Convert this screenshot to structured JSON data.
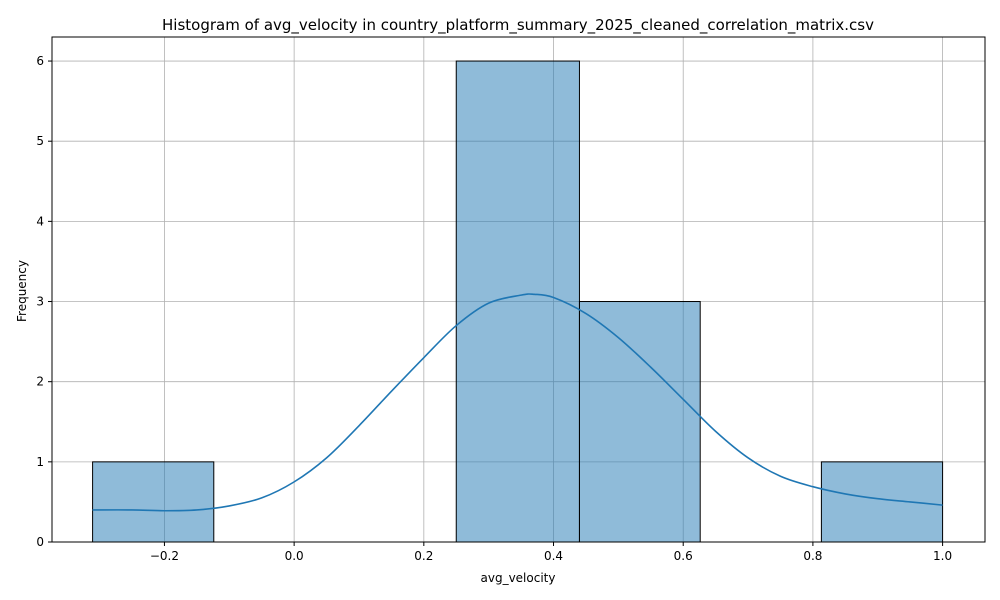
{
  "chart_data": {
    "type": "bar",
    "title": "Histogram of avg_velocity in country_platform_summary_2025_cleaned_correlation_matrix.csv",
    "xlabel": "avg_velocity",
    "ylabel": "Frequency",
    "xlim": [
      -0.3734,
      1.0654
    ],
    "ylim": [
      0,
      6.3
    ],
    "grid": true,
    "xticks": [
      -0.2,
      0.0,
      0.2,
      0.4,
      0.6,
      0.8,
      1.0
    ],
    "xtick_labels": [
      "−0.2",
      "0.0",
      "0.2",
      "0.4",
      "0.6",
      "0.8",
      "1.0"
    ],
    "yticks": [
      0,
      1,
      2,
      3,
      4,
      5,
      6
    ],
    "ytick_labels": [
      "0",
      "1",
      "2",
      "3",
      "4",
      "5",
      "6"
    ],
    "bins": [
      {
        "x0": -0.3108,
        "x1": -0.1239,
        "count": 1
      },
      {
        "x0": -0.1239,
        "x1": 0.0631,
        "count": 0
      },
      {
        "x0": 0.0631,
        "x1": 0.25,
        "count": 0
      },
      {
        "x0": 0.25,
        "x1": 0.44,
        "count": 6
      },
      {
        "x0": 0.44,
        "x1": 0.6262,
        "count": 3
      },
      {
        "x0": 0.6262,
        "x1": 0.8131,
        "count": 0
      },
      {
        "x0": 0.8131,
        "x1": 1.0,
        "count": 1
      }
    ],
    "kde": {
      "x": [
        -0.3108,
        -0.25,
        -0.2,
        -0.15,
        -0.1,
        -0.05,
        0.0,
        0.05,
        0.1,
        0.15,
        0.2,
        0.25,
        0.3,
        0.35,
        0.37,
        0.4,
        0.45,
        0.5,
        0.55,
        0.6,
        0.65,
        0.7,
        0.75,
        0.8,
        0.85,
        0.9,
        0.95,
        1.0
      ],
      "y": [
        0.4,
        0.4,
        0.39,
        0.4,
        0.45,
        0.55,
        0.75,
        1.05,
        1.45,
        1.88,
        2.3,
        2.7,
        2.98,
        3.08,
        3.09,
        3.05,
        2.85,
        2.55,
        2.18,
        1.78,
        1.38,
        1.05,
        0.82,
        0.69,
        0.6,
        0.54,
        0.5,
        0.46
      ],
      "color": "#1f77b4"
    },
    "bar_color": "#1f77b4"
  }
}
